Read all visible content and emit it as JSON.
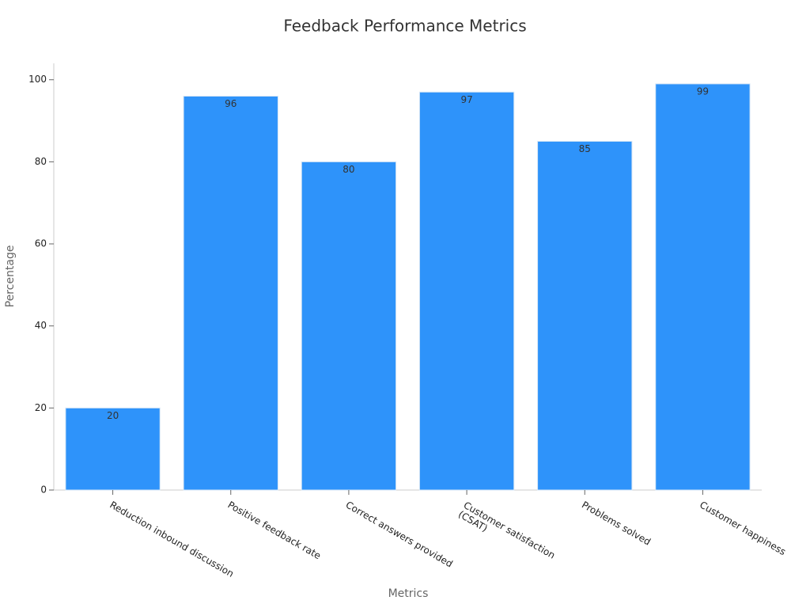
{
  "chart_data": {
    "type": "bar",
    "title": "Feedback Performance Metrics",
    "x_label": "Metrics",
    "y_label": "Percentage",
    "categories": [
      "Reduction inbound discussion",
      "Positive feedback rate",
      "Correct answers provided",
      "Customer satisfaction\n(CSAT)",
      "Problems solved",
      "Customer happiness"
    ],
    "values": [
      20,
      96,
      80,
      97,
      85,
      99
    ],
    "color": "#2e93fa",
    "ylim": [
      0,
      104
    ],
    "yticks": [
      0,
      20,
      40,
      60,
      80,
      100
    ],
    "grid": false
  }
}
